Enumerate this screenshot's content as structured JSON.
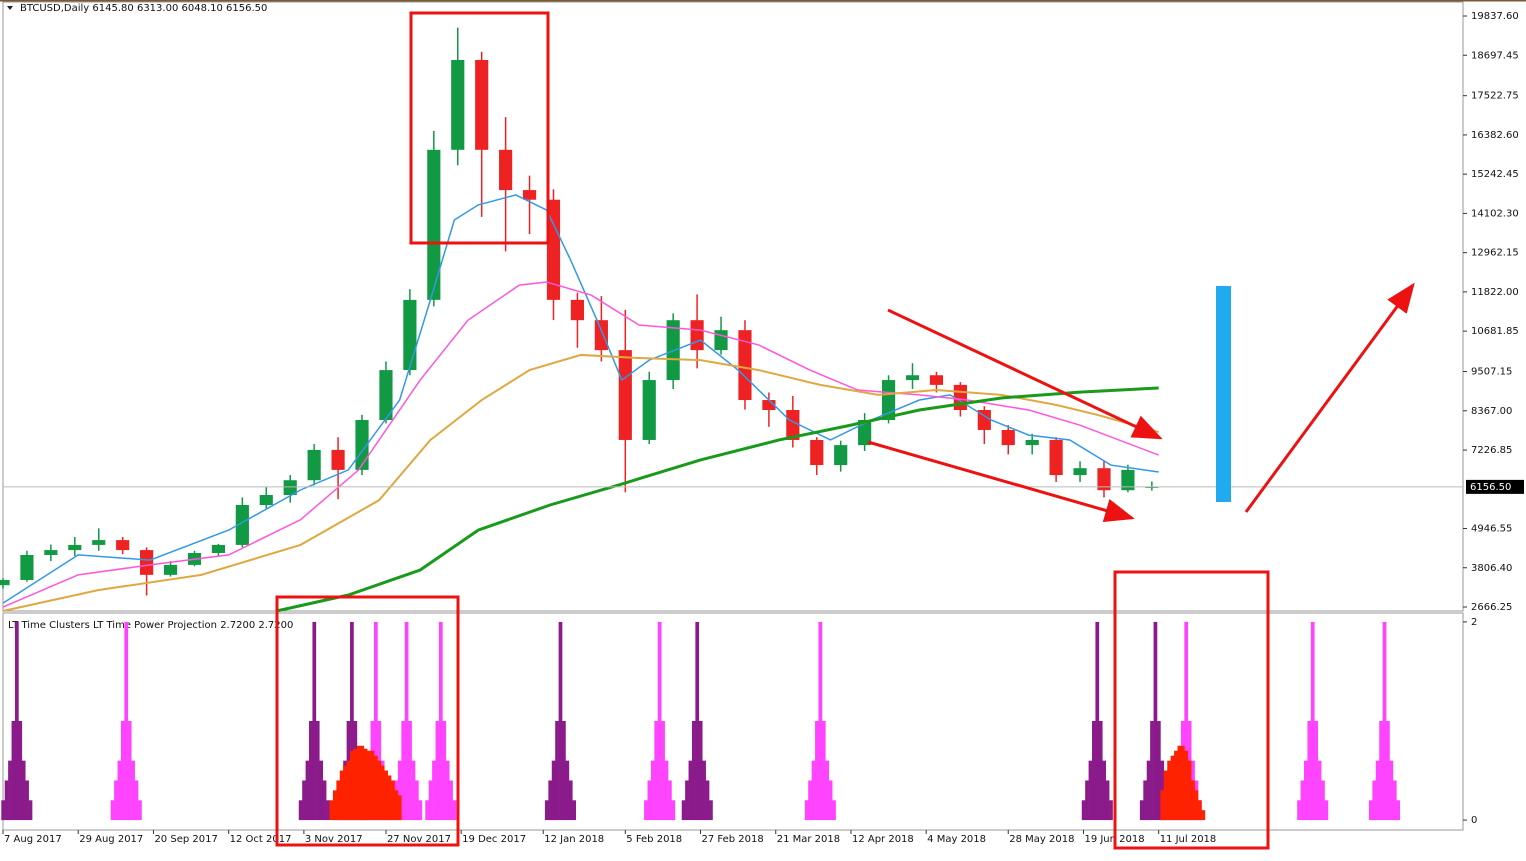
{
  "chart_data": [
    {
      "type": "candlestick",
      "title": "BTCUSD,Daily",
      "title_values": [
        "6145.80",
        "6313.00",
        "6048.10",
        "6156.50"
      ],
      "up_color": "#119944",
      "down_color": "#ee2222",
      "x": [
        0,
        7,
        14,
        21,
        28,
        35,
        42,
        49,
        56,
        63,
        70,
        77,
        84,
        91,
        98,
        105,
        112,
        119,
        126,
        133,
        140,
        147,
        154,
        161,
        168,
        175,
        182,
        189,
        196,
        203,
        210,
        217,
        224,
        231,
        238,
        245,
        252,
        259,
        266,
        273,
        280,
        287,
        294,
        301,
        308,
        315,
        322,
        329,
        336
      ],
      "open": [
        3300,
        3450,
        4177,
        4320,
        4470,
        4610,
        4320,
        3600,
        3890,
        4235,
        4470,
        5630,
        5920,
        6350,
        7230,
        6650,
        8100,
        9550,
        11590,
        15950,
        18560,
        15950,
        14780,
        14500,
        11590,
        11000,
        10130,
        7520,
        9260,
        11000,
        10130,
        10710,
        8680,
        8390,
        7520,
        6790,
        7370,
        8100,
        9260,
        9400,
        9120,
        8390,
        7810,
        7370,
        7520,
        6500,
        6700,
        6060,
        6145.8
      ],
      "high": [
        3500,
        4300,
        4480,
        4700,
        4950,
        4700,
        4400,
        4000,
        4300,
        4500,
        5850,
        6150,
        6500,
        7400,
        7600,
        8250,
        9800,
        11900,
        16500,
        19500,
        18800,
        16900,
        15200,
        14800,
        11800,
        11700,
        11300,
        9500,
        11200,
        11750,
        11100,
        11000,
        8900,
        8800,
        7600,
        7500,
        8300,
        9400,
        9750,
        9500,
        9200,
        8500,
        7950,
        7700,
        7600,
        6900,
        6900,
        6800,
        6313
      ],
      "low": [
        3200,
        3400,
        4000,
        4150,
        4300,
        4200,
        3000,
        3550,
        3850,
        4150,
        4400,
        5500,
        5700,
        6200,
        5800,
        6500,
        8000,
        9400,
        11400,
        15500,
        14000,
        13000,
        13500,
        11000,
        10200,
        9800,
        6000,
        7400,
        9000,
        9600,
        10000,
        8400,
        7900,
        7300,
        6500,
        6600,
        7200,
        8000,
        9000,
        8900,
        8200,
        7400,
        7100,
        7100,
        6300,
        6300,
        5850,
        6000,
        6048.1
      ],
      "close": [
        3450,
        4177,
        4320,
        4470,
        4610,
        4320,
        3600,
        3890,
        4235,
        4470,
        5630,
        5920,
        6350,
        7230,
        6650,
        8100,
        9550,
        11590,
        15950,
        18560,
        15950,
        14780,
        14500,
        11590,
        11000,
        10130,
        7520,
        9260,
        11000,
        10130,
        10710,
        8680,
        8390,
        7520,
        6790,
        7370,
        8100,
        9260,
        9400,
        9120,
        8390,
        7810,
        7370,
        7520,
        6500,
        6700,
        6060,
        6650,
        6156.5
      ],
      "lines": [
        {
          "color": "#3399e6",
          "width": 1.5,
          "x": [
            0,
            22,
            43,
            66,
            87,
            101,
            116,
            125,
            132,
            139,
            150,
            159,
            166,
            175,
            181,
            189,
            204,
            215,
            230,
            242,
            254,
            268,
            277,
            289,
            300,
            312,
            324,
            338
          ],
          "values": [
            2780,
            4180,
            4030,
            4900,
            6066,
            6650,
            8680,
            11590,
            13910,
            14350,
            14640,
            14200,
            12750,
            10710,
            9260,
            9840,
            10420,
            9550,
            8100,
            7520,
            8100,
            8680,
            8830,
            8100,
            7660,
            7520,
            6790,
            6590
          ]
        },
        {
          "color": "#ff55dd",
          "width": 1.5,
          "x": [
            0,
            22,
            43,
            66,
            87,
            104,
            122,
            136,
            151,
            159,
            172,
            186,
            204,
            221,
            236,
            250,
            268,
            282,
            300,
            315,
            338
          ],
          "values": [
            2666,
            3600,
            3890,
            4180,
            5200,
            6650,
            9260,
            11000,
            12020,
            12110,
            11730,
            10860,
            10710,
            10280,
            9550,
            8970,
            8830,
            8680,
            8390,
            7950,
            7080
          ]
        },
        {
          "color": "#e0a840",
          "width": 2,
          "x": [
            0,
            28,
            58,
            87,
            110,
            125,
            140,
            154,
            169,
            186,
            204,
            221,
            239,
            256,
            273,
            292,
            308,
            320,
            338
          ],
          "values": [
            2550,
            3160,
            3600,
            4470,
            5770,
            7520,
            8680,
            9550,
            9990,
            9900,
            9840,
            9550,
            9120,
            8830,
            8970,
            8830,
            8540,
            8250,
            7750
          ]
        },
        {
          "color": "#1a9a1a",
          "width": 3,
          "x": [
            80,
            101,
            122,
            139,
            160,
            180,
            204,
            227,
            248,
            268,
            292,
            315,
            338
          ],
          "values": [
            2550,
            3015,
            3740,
            4900,
            5630,
            6210,
            6940,
            7520,
            7950,
            8390,
            8740,
            8910,
            9030
          ]
        }
      ],
      "price_label": {
        "value": 6156.5,
        "label": "6156.50"
      },
      "xlim": [
        0,
        427
      ],
      "xticks": [
        {
          "value": 0,
          "label": "7 Aug 2017"
        },
        {
          "value": 22,
          "label": "29 Aug 2017"
        },
        {
          "value": 44,
          "label": "20 Sep 2017"
        },
        {
          "value": 66,
          "label": "12 Oct 2017"
        },
        {
          "value": 88,
          "label": "3 Nov 2017"
        },
        {
          "value": 112,
          "label": "27 Nov 2017"
        },
        {
          "value": 134,
          "label": "19 Dec 2017"
        },
        {
          "value": 158,
          "label": "12 Jan 2018"
        },
        {
          "value": 182,
          "label": "5 Feb 2018"
        },
        {
          "value": 204,
          "label": "27 Feb 2018"
        },
        {
          "value": 226,
          "label": "21 Mar 2018"
        },
        {
          "value": 248,
          "label": "12 Apr 2018"
        },
        {
          "value": 270,
          "label": "4 May 2018"
        },
        {
          "value": 294,
          "label": "28 May 2018"
        },
        {
          "value": 316,
          "label": "19 Jun 2018"
        },
        {
          "value": 338,
          "label": "11 Jul 2018"
        }
      ],
      "ylim": [
        2550,
        20245
      ],
      "yticks": [
        2666.25,
        {
          "value": 3806.4,
          "label": "3806.40"
        },
        4946.55,
        7226.85,
        {
          "value": 8367,
          "label": "8367.00"
        },
        9507.15,
        10681.85,
        {
          "value": 11822,
          "label": "11822.00"
        },
        12962.15,
        {
          "value": 14102.3,
          "label": "14102.30"
        },
        15242.45,
        {
          "value": 16382.6,
          "label": "16382.60"
        },
        17522.75,
        18697.45,
        {
          "value": 19837.6,
          "label": "19837.60"
        }
      ]
    },
    {
      "type": "bar",
      "title": "LT Time Clusters  LT Time Power Projection 2.7200 2.7200",
      "xlim": [
        0,
        427
      ],
      "ylim": [
        -0.1,
        2.09
      ],
      "yticks": [
        0,
        2
      ],
      "series": [
        {
          "color": "#8b1a8b",
          "x": [
            0,
            1,
            2,
            3,
            4,
            5,
            6,
            7,
            8
          ],
          "values": [
            0.2,
            0.4,
            0.6,
            1,
            2,
            1,
            0.6,
            0.4,
            0.2
          ]
        },
        {
          "color": "#8b1a8b",
          "x": [
            87,
            88,
            89,
            90,
            91,
            92,
            93,
            94,
            95
          ],
          "values": [
            0.2,
            0.4,
            0.6,
            1,
            2,
            1,
            0.6,
            0.4,
            0.2
          ]
        },
        {
          "color": "#8b1a8b",
          "x": [
            98,
            99,
            100,
            101,
            102,
            103,
            104,
            105,
            106
          ],
          "values": [
            0.2,
            0.4,
            0.6,
            1,
            2,
            1,
            0.6,
            0.4,
            0.2
          ]
        },
        {
          "color": "#8b1a8b",
          "x": [
            159,
            160,
            161,
            162,
            163,
            164,
            165,
            166,
            167
          ],
          "values": [
            0.2,
            0.4,
            0.6,
            1,
            2,
            1,
            0.6,
            0.4,
            0.2
          ]
        },
        {
          "color": "#8b1a8b",
          "x": [
            199,
            200,
            201,
            202,
            203,
            204,
            205,
            206,
            207
          ],
          "values": [
            0.2,
            0.4,
            0.6,
            1,
            2,
            1,
            0.6,
            0.4,
            0.2
          ]
        },
        {
          "color": "#8b1a8b",
          "x": [
            316,
            317,
            318,
            319,
            320,
            321,
            322,
            323,
            324
          ],
          "values": [
            0.2,
            0.4,
            0.6,
            1,
            2,
            1,
            0.6,
            0.4,
            0.2
          ]
        },
        {
          "color": "#8b1a8b",
          "x": [
            333,
            334,
            335,
            336,
            337,
            338,
            339,
            340,
            341
          ],
          "values": [
            0.2,
            0.4,
            0.6,
            1,
            2,
            1,
            0.6,
            0.4,
            0.2
          ]
        },
        {
          "color": "#ff44ff",
          "x": [
            32,
            33,
            34,
            35,
            36,
            37,
            38,
            39,
            40
          ],
          "values": [
            0.2,
            0.4,
            0.6,
            1,
            2,
            1,
            0.6,
            0.4,
            0.2
          ]
        },
        {
          "color": "#ff44ff",
          "x": [
            105,
            106,
            107,
            108,
            109,
            110,
            111,
            112,
            113
          ],
          "values": [
            0.2,
            0.4,
            0.6,
            1,
            2,
            1,
            0.6,
            0.4,
            0.2
          ]
        },
        {
          "color": "#ff44ff",
          "x": [
            114,
            115,
            116,
            117,
            118,
            119,
            120,
            121,
            122
          ],
          "values": [
            0.2,
            0.4,
            0.6,
            1,
            2,
            1,
            0.6,
            0.4,
            0.2
          ]
        },
        {
          "color": "#ff44ff",
          "x": [
            124,
            125,
            126,
            127,
            128,
            129,
            130,
            131,
            132
          ],
          "values": [
            0.2,
            0.4,
            0.6,
            1,
            2,
            1,
            0.6,
            0.4,
            0.2
          ]
        },
        {
          "color": "#ff44ff",
          "x": [
            188,
            189,
            190,
            191,
            192,
            193,
            194,
            195,
            196
          ],
          "values": [
            0.2,
            0.4,
            0.6,
            1,
            2,
            1,
            0.6,
            0.4,
            0.2
          ]
        },
        {
          "color": "#ff44ff",
          "x": [
            235,
            236,
            237,
            238,
            239,
            240,
            241,
            242,
            243
          ],
          "values": [
            0.2,
            0.4,
            0.6,
            1,
            2,
            1,
            0.6,
            0.4,
            0.2
          ]
        },
        {
          "color": "#ff44ff",
          "x": [
            342,
            343,
            344,
            345,
            346,
            347,
            348,
            349,
            350
          ],
          "values": [
            0.2,
            0.4,
            0.6,
            1,
            2,
            1,
            0.6,
            0.4,
            0.2
          ]
        },
        {
          "color": "#ff44ff",
          "x": [
            379,
            380,
            381,
            382,
            383,
            384,
            385,
            386,
            387
          ],
          "values": [
            0.2,
            0.4,
            0.6,
            1,
            2,
            1,
            0.6,
            0.4,
            0.2
          ]
        },
        {
          "color": "#ff44ff",
          "x": [
            400,
            401,
            402,
            403,
            404,
            405,
            406,
            407,
            408
          ],
          "values": [
            0.2,
            0.4,
            0.6,
            1,
            2,
            1,
            0.6,
            0.4,
            0.2
          ]
        },
        {
          "color": "#ff2200",
          "x": [
            96,
            97,
            98,
            99,
            100,
            101,
            102,
            103,
            104,
            105,
            106,
            107,
            108,
            109,
            110,
            111,
            112,
            113,
            114,
            115,
            116
          ],
          "values": [
            0.2,
            0.3,
            0.4,
            0.5,
            0.55,
            0.6,
            0.7,
            0.72,
            0.75,
            0.75,
            0.72,
            0.7,
            0.7,
            0.65,
            0.6,
            0.55,
            0.5,
            0.45,
            0.4,
            0.3,
            0.25
          ]
        },
        {
          "color": "#ff2200",
          "x": [
            339,
            340,
            341,
            342,
            343,
            344,
            345,
            346,
            347,
            348,
            349,
            350,
            351
          ],
          "values": [
            0.3,
            0.5,
            0.6,
            0.65,
            0.7,
            0.75,
            0.75,
            0.7,
            0.6,
            0.4,
            0.3,
            0.2,
            0.1
          ]
        }
      ]
    }
  ]
}
